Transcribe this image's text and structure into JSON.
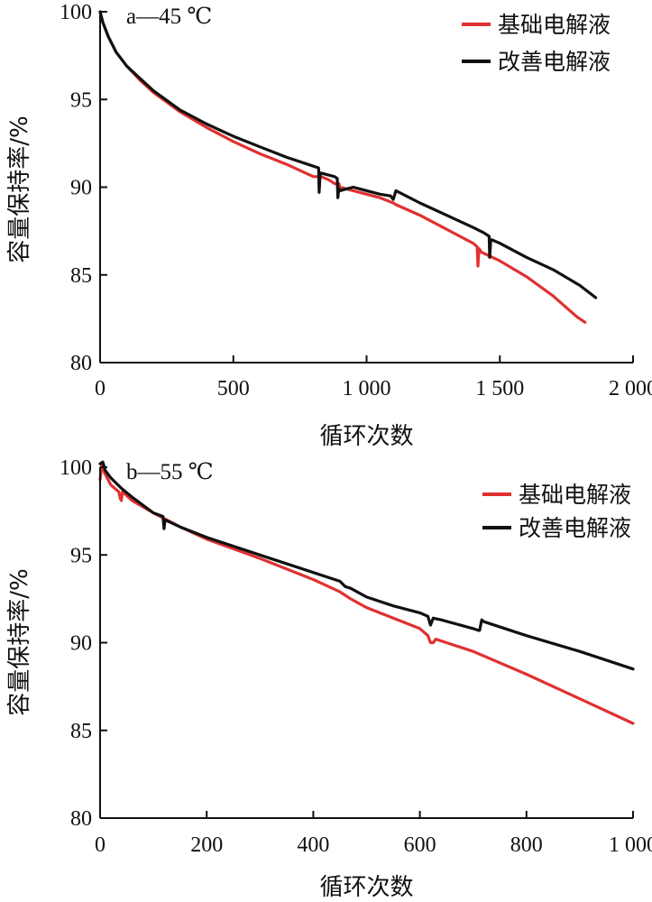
{
  "colors": {
    "base": "#e03131",
    "improved": "#111111",
    "axis": "#111111"
  },
  "chart_data": [
    {
      "type": "line",
      "panel_label": "a—45 ℃",
      "xlabel": "循环次数",
      "ylabel": "容量保持率/%",
      "xlim": [
        0,
        2000
      ],
      "ylim": [
        80,
        100
      ],
      "x_ticks": [
        0,
        500,
        1000,
        1500,
        2000
      ],
      "x_tick_labels": [
        "0",
        "500",
        "1 000",
        "1 500",
        "2 000"
      ],
      "y_ticks": [
        80,
        85,
        90,
        95,
        100
      ],
      "y_tick_labels": [
        "80",
        "85",
        "90",
        "95",
        "100"
      ],
      "legend_position": "top-right",
      "series": [
        {
          "name": "基础电解液",
          "color": "#e03131",
          "x": [
            0,
            10,
            30,
            60,
            100,
            150,
            200,
            300,
            400,
            500,
            600,
            700,
            800,
            820,
            822,
            826,
            830,
            860,
            880,
            890,
            892,
            896,
            900,
            950,
            1000,
            1050,
            1100,
            1110,
            1200,
            1300,
            1400,
            1415,
            1418,
            1422,
            1430,
            1500,
            1600,
            1700,
            1790,
            1820
          ],
          "y": [
            100,
            99.4,
            98.6,
            97.7,
            96.9,
            96.1,
            95.4,
            94.3,
            93.4,
            92.6,
            91.9,
            91.3,
            90.6,
            90.6,
            90.2,
            90.6,
            90.6,
            90.4,
            90.2,
            90.2,
            89.8,
            90.2,
            90.0,
            89.8,
            89.6,
            89.4,
            89.1,
            89.0,
            88.4,
            87.6,
            86.8,
            86.6,
            85.5,
            86.5,
            86.3,
            85.8,
            84.9,
            83.8,
            82.6,
            82.3
          ]
        },
        {
          "name": "改善电解液",
          "color": "#111111",
          "x": [
            0,
            10,
            30,
            60,
            100,
            150,
            200,
            300,
            400,
            500,
            600,
            700,
            800,
            820,
            822,
            826,
            830,
            880,
            890,
            892,
            896,
            900,
            950,
            1000,
            1050,
            1090,
            1100,
            1110,
            1200,
            1300,
            1400,
            1440,
            1460,
            1462,
            1466,
            1470,
            1500,
            1600,
            1700,
            1800,
            1860
          ],
          "y": [
            100,
            99.4,
            98.6,
            97.7,
            96.9,
            96.2,
            95.5,
            94.4,
            93.6,
            92.9,
            92.3,
            91.7,
            91.2,
            91.1,
            89.7,
            90.8,
            90.8,
            90.6,
            90.5,
            89.4,
            89.9,
            89.8,
            90.0,
            89.8,
            89.6,
            89.5,
            89.3,
            89.8,
            89.1,
            88.4,
            87.7,
            87.4,
            87.2,
            86.0,
            87.0,
            87.0,
            86.8,
            86.0,
            85.3,
            84.4,
            83.7
          ]
        }
      ]
    },
    {
      "type": "line",
      "panel_label": "b—55 ℃",
      "xlabel": "循环次数",
      "ylabel": "容量保持率/%",
      "xlim": [
        0,
        1000
      ],
      "ylim": [
        80,
        100
      ],
      "x_ticks": [
        0,
        200,
        400,
        600,
        800,
        1000
      ],
      "x_tick_labels": [
        "0",
        "200",
        "400",
        "600",
        "800",
        "1 000"
      ],
      "y_ticks": [
        80,
        85,
        90,
        95,
        100
      ],
      "y_tick_labels": [
        "80",
        "85",
        "90",
        "95",
        "100"
      ],
      "legend_position": "top-right",
      "series": [
        {
          "name": "基础电解液",
          "color": "#e03131",
          "x": [
            0,
            3,
            8,
            20,
            35,
            38,
            40,
            42,
            60,
            100,
            150,
            200,
            300,
            400,
            450,
            460,
            470,
            500,
            550,
            600,
            615,
            620,
            625,
            630,
            700,
            800,
            900,
            1000
          ],
          "y": [
            99.3,
            100.1,
            99.7,
            99.0,
            98.6,
            98.2,
            98.1,
            98.6,
            98.1,
            97.4,
            96.6,
            95.9,
            94.8,
            93.6,
            92.9,
            92.7,
            92.5,
            92.0,
            91.4,
            90.8,
            90.4,
            90.0,
            90.0,
            90.2,
            89.5,
            88.2,
            86.8,
            85.4
          ]
        },
        {
          "name": "改善电解液",
          "color": "#111111",
          "x": [
            0,
            5,
            10,
            20,
            40,
            60,
            100,
            118,
            120,
            122,
            150,
            200,
            300,
            400,
            450,
            460,
            470,
            500,
            550,
            600,
            615,
            620,
            625,
            640,
            700,
            710,
            712,
            716,
            720,
            800,
            900,
            1000
          ],
          "y": [
            100.2,
            100.3,
            99.8,
            99.4,
            98.8,
            98.3,
            97.4,
            97.2,
            96.5,
            97.0,
            96.6,
            96.0,
            95.0,
            94.0,
            93.5,
            93.2,
            93.1,
            92.6,
            92.1,
            91.7,
            91.5,
            91.0,
            91.4,
            91.3,
            90.8,
            90.7,
            90.7,
            91.3,
            91.2,
            90.4,
            89.5,
            88.5
          ]
        }
      ]
    }
  ]
}
